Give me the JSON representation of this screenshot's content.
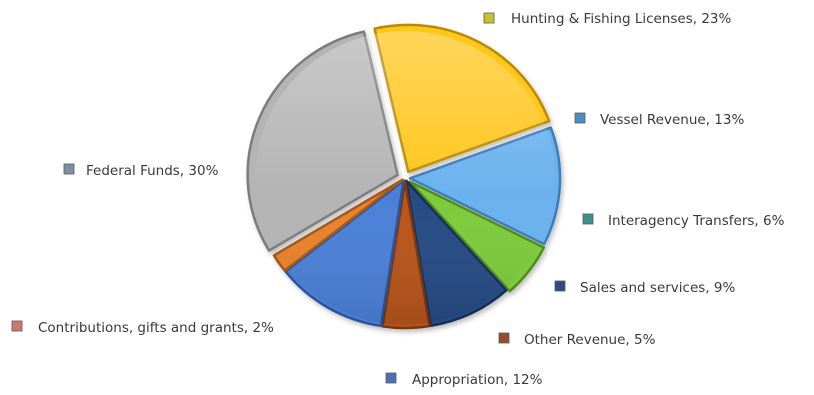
{
  "chart_data": {
    "type": "pie",
    "title": "",
    "slices": [
      {
        "label": "Hunting & Fishing Licenses",
        "value": 23,
        "display": "Hunting & Fishing Licenses, 23%",
        "color": "#FFC61A",
        "dark": "#B98C05"
      },
      {
        "label": "Vessel Revenue",
        "value": 13,
        "display": "Vessel Revenue, 13%",
        "color": "#6AB2EE",
        "dark": "#3C7DB6"
      },
      {
        "label": "Interagency Transfers",
        "value": 6,
        "display": "Interagency Transfers, 6%",
        "color": "#7CCB3A",
        "dark": "#4E8C1E"
      },
      {
        "label": "Sales and services",
        "value": 9,
        "display": "Sales and services, 9%",
        "color": "#254C85",
        "dark": "#142D55"
      },
      {
        "label": "Other Revenue",
        "value": 5,
        "display": "Other Revenue, 5%",
        "color": "#B8541B",
        "dark": "#7A3510"
      },
      {
        "label": "Appropriation",
        "value": 12,
        "display": "Appropriation, 12%",
        "color": "#4C80D8",
        "dark": "#2C5298"
      },
      {
        "label": "Contributions, gifts and grants",
        "value": 2,
        "display": "Contributions, gifts and grants, 2%",
        "color": "#E8822C",
        "dark": "#A5571A"
      },
      {
        "label": "Federal Funds",
        "value": 30,
        "display": "Federal Funds, 30%",
        "color": "#B4B4B4",
        "dark": "#7C7C7C"
      }
    ],
    "legend_marker_colors": [
      "#C9C22E",
      "#4C8BC2",
      "#3F8F8C",
      "#2B4C86",
      "#9A4A2E",
      "#4C6FB8",
      "#D0776E",
      "#7F8FA8"
    ],
    "legend": "labels around pie"
  }
}
